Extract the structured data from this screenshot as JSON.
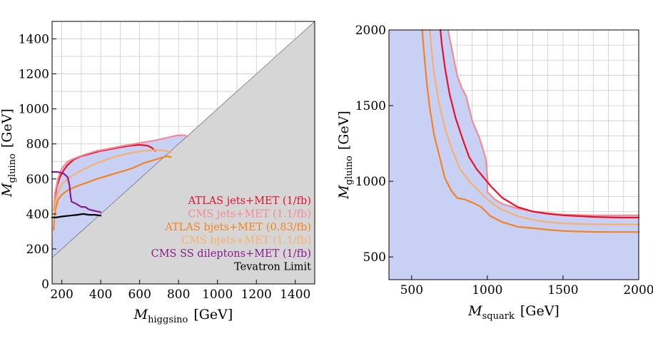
{
  "chart_data": [
    {
      "type": "line",
      "xlabel_main": "M",
      "xlabel_sub": "higgsino",
      "xlabel_unit": "[GeV]",
      "ylabel_main": "M",
      "ylabel_sub": "gluino",
      "ylabel_unit": "[GeV]",
      "xlim": [
        150,
        1500
      ],
      "ylim": [
        0,
        1500
      ],
      "xticks": [
        "200",
        "400",
        "600",
        "800",
        "1000",
        "1200",
        "1400"
      ],
      "yticks": [
        "0",
        "200",
        "400",
        "600",
        "800",
        "1000",
        "1200",
        "1400"
      ],
      "xtick_values": [
        200,
        400,
        600,
        800,
        1000,
        1200,
        1400
      ],
      "ytick_values": [
        0,
        200,
        400,
        600,
        800,
        1000,
        1200,
        1400
      ],
      "grid": true,
      "excluded_region": "M_gluino < M_higgsino",
      "colors": {
        "excluded": "#d6d6d6",
        "allowed_fill": "#c8d0f4"
      },
      "series": [
        {
          "name": "ATLAS jets+MET (1/fb)",
          "color": "#e8102a",
          "x": [
            160,
            165,
            175,
            190,
            210,
            230,
            260,
            300,
            350,
            400,
            450,
            500,
            550,
            600,
            640,
            660,
            680
          ],
          "y": [
            420,
            500,
            560,
            610,
            650,
            680,
            710,
            730,
            745,
            760,
            770,
            780,
            790,
            795,
            790,
            780,
            760
          ]
        },
        {
          "name": "CMS jets+MET (1.1/fb)",
          "color": "#f48a94",
          "x": [
            160,
            165,
            180,
            200,
            230,
            270,
            320,
            380,
            450,
            520,
            600,
            680,
            740,
            790,
            830,
            845
          ],
          "y": [
            440,
            520,
            600,
            660,
            700,
            720,
            740,
            760,
            775,
            790,
            805,
            820,
            835,
            848,
            850,
            840
          ]
        },
        {
          "name": "ATLAS bjets+MET (0.83/fb)",
          "color": "#f58220",
          "x": [
            158,
            162,
            170,
            180,
            200,
            230,
            270,
            320,
            380,
            440,
            500,
            560,
            620,
            680,
            740,
            760
          ],
          "y": [
            310,
            390,
            440,
            480,
            510,
            535,
            555,
            575,
            600,
            620,
            640,
            660,
            690,
            710,
            730,
            725
          ]
        },
        {
          "name": "CMS bjets+MET (1.1/fb)",
          "color": "#f8b070",
          "x": [
            160,
            165,
            180,
            200,
            230,
            270,
            320,
            380,
            440,
            500,
            560,
            620,
            680,
            740,
            760
          ],
          "y": [
            400,
            460,
            520,
            570,
            600,
            630,
            660,
            690,
            715,
            735,
            750,
            760,
            765,
            760,
            750
          ]
        },
        {
          "name": "CMS SS dileptons+MET (1/fb)",
          "color": "#8b1a8b",
          "x": [
            150,
            180,
            210,
            230,
            240,
            245,
            250,
            270,
            300,
            320,
            340,
            360,
            380,
            400
          ],
          "y": [
            640,
            640,
            630,
            610,
            560,
            500,
            470,
            460,
            440,
            440,
            425,
            420,
            415,
            410
          ]
        },
        {
          "name": "Tevatron Limit",
          "color": "#000000",
          "x": [
            150,
            170,
            200,
            240,
            280,
            310,
            340,
            370,
            400
          ],
          "y": [
            380,
            380,
            385,
            390,
            395,
            400,
            395,
            395,
            390
          ]
        }
      ]
    },
    {
      "type": "line",
      "xlabel_main": "M",
      "xlabel_sub": "squark",
      "xlabel_unit": "[GeV]",
      "ylabel_main": "M",
      "ylabel_sub": "gluino",
      "ylabel_unit": "[GeV]",
      "xlim": [
        350,
        2000
      ],
      "ylim": [
        350,
        2000
      ],
      "xticks": [
        "500",
        "1000",
        "1500",
        "2000"
      ],
      "yticks": [
        "500",
        "1000",
        "1500",
        "2000"
      ],
      "xtick_values": [
        500,
        1000,
        1500,
        2000
      ],
      "ytick_values": [
        500,
        1000,
        1500,
        2000
      ],
      "grid": true,
      "colors": {
        "allowed_fill": "#c8d0f4"
      },
      "series": [
        {
          "color": "#f48a94",
          "x": [
            740,
            760,
            780,
            800,
            830,
            860,
            900,
            950,
            990,
            1000,
            1000,
            1050,
            1100,
            1200,
            1300,
            1400,
            1500,
            1700,
            1900,
            2000
          ],
          "y": [
            2000,
            1900,
            1800,
            1700,
            1620,
            1560,
            1400,
            1280,
            1150,
            1030,
            930,
            880,
            850,
            820,
            800,
            790,
            780,
            775,
            775,
            775
          ]
        },
        {
          "color": "#e8102a",
          "x": [
            690,
            700,
            720,
            750,
            790,
            840,
            880,
            930,
            980,
            1030,
            1100,
            1200,
            1300,
            1400,
            1500,
            1600,
            1700,
            1800,
            1900,
            2000
          ],
          "y": [
            2000,
            1900,
            1750,
            1580,
            1420,
            1270,
            1160,
            1080,
            1020,
            960,
            890,
            830,
            800,
            785,
            775,
            770,
            765,
            762,
            760,
            760
          ]
        },
        {
          "color": "#f8b070",
          "x": [
            620,
            630,
            650,
            680,
            720,
            770,
            820,
            880,
            940,
            1000,
            1080,
            1200,
            1300,
            1400,
            1500,
            1600,
            1700,
            1800,
            1900,
            2000
          ],
          "y": [
            2000,
            1880,
            1700,
            1520,
            1350,
            1200,
            1080,
            1000,
            940,
            880,
            820,
            770,
            745,
            730,
            722,
            718,
            716,
            715,
            715,
            715
          ]
        },
        {
          "color": "#f58220",
          "x": [
            570,
            580,
            600,
            620,
            650,
            690,
            720,
            760,
            800,
            850,
            900,
            960,
            1020,
            1100,
            1200,
            1300,
            1400,
            1500,
            1600,
            1700,
            1800,
            1900,
            2000
          ],
          "y": [
            2000,
            1870,
            1650,
            1480,
            1300,
            1140,
            1020,
            940,
            890,
            880,
            860,
            830,
            770,
            730,
            700,
            690,
            680,
            672,
            668,
            666,
            665,
            665,
            665
          ]
        }
      ]
    }
  ]
}
